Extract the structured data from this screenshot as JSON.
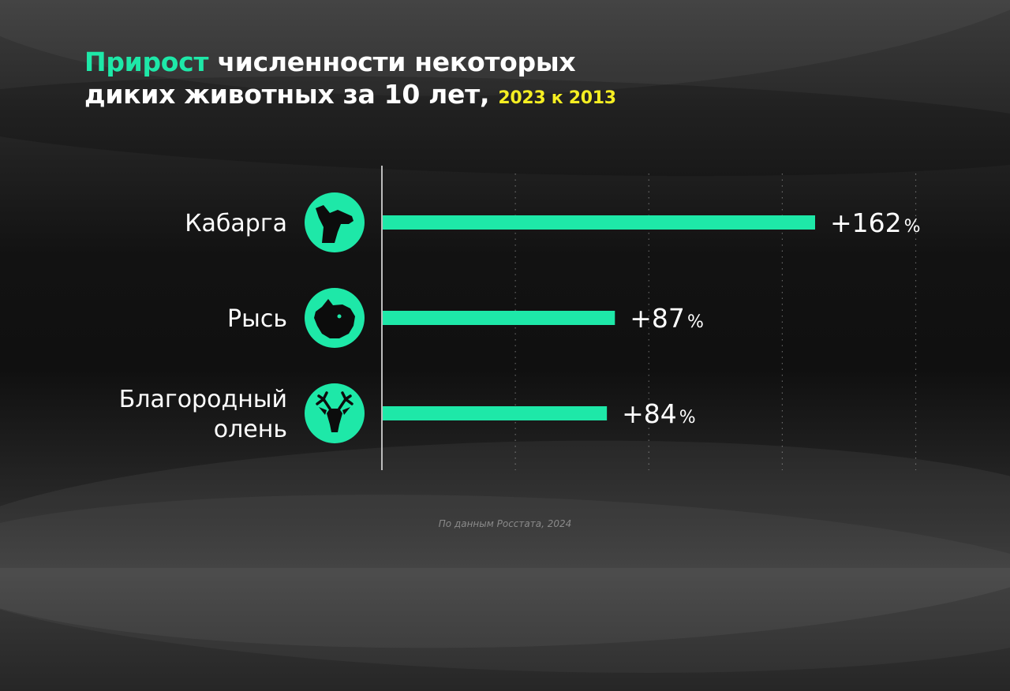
{
  "title": {
    "accent": "Прирост",
    "line1_rest": " численности некоторых",
    "line2": "диких животных за 10 лет, ",
    "period": "2023 к 2013"
  },
  "source": "По данным Росстата, 2024",
  "colors": {
    "accent": "#1ee8a8",
    "period": "#f5ee22",
    "text": "#ffffff"
  },
  "chart_data": {
    "type": "bar",
    "orientation": "horizontal",
    "categories": [
      {
        "lines": [
          "Кабарга"
        ],
        "icon": "musk-deer-head-icon"
      },
      {
        "lines": [
          "Рысь"
        ],
        "icon": "lynx-head-icon"
      },
      {
        "lines": [
          "Благородный",
          "олень"
        ],
        "icon": "red-deer-head-icon"
      }
    ],
    "values": [
      162,
      87,
      84
    ],
    "value_labels": [
      "+162",
      "+87",
      "+84"
    ],
    "unit": "%",
    "grid": "vertical dotted",
    "xlim": [
      0,
      200
    ]
  }
}
